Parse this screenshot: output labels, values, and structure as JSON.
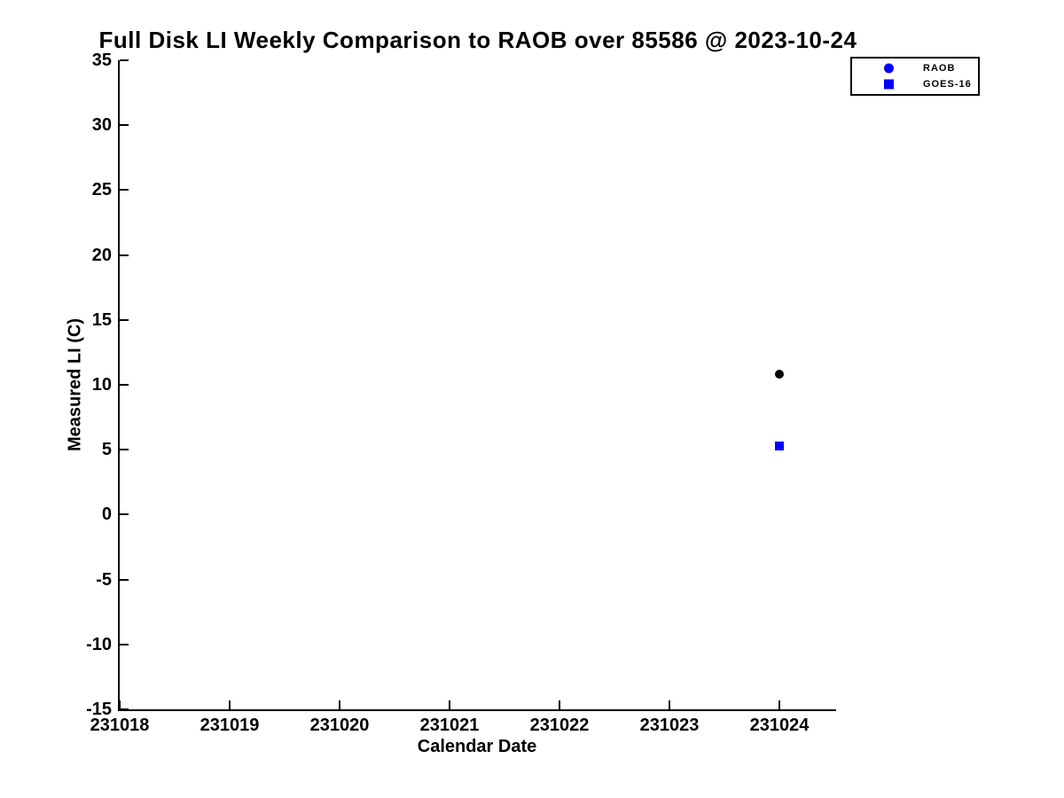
{
  "chart_data": {
    "type": "scatter",
    "title": "Full Disk LI Weekly Comparison to RAOB over 85586 @ 2023-10-24",
    "xlabel": "Calendar Date",
    "ylabel": "Measured LI (C)",
    "xlim": [
      231018,
      231024.5
    ],
    "ylim": [
      -15,
      35
    ],
    "xticks": [
      231018,
      231019,
      231020,
      231021,
      231022,
      231023,
      231024
    ],
    "yticks": [
      35,
      30,
      25,
      20,
      15,
      10,
      5,
      0,
      -5,
      -10,
      -15
    ],
    "grid": false,
    "legend": {
      "position": "top-right-outside",
      "border_color": "#000000",
      "background": "#ffffff"
    },
    "series": [
      {
        "name": "RAOB",
        "marker": "circle",
        "marker_color": "#000000",
        "legend_marker_color": "#0000ff",
        "x": [
          231024
        ],
        "y": [
          10.8
        ]
      },
      {
        "name": "GOES-16",
        "marker": "square",
        "marker_color": "#0000ff",
        "legend_marker_color": "#0000ff",
        "x": [
          231024
        ],
        "y": [
          5.3
        ]
      }
    ],
    "colors": {
      "axis": "#000000",
      "background": "#ffffff",
      "accent_blue": "#0000ff"
    }
  }
}
